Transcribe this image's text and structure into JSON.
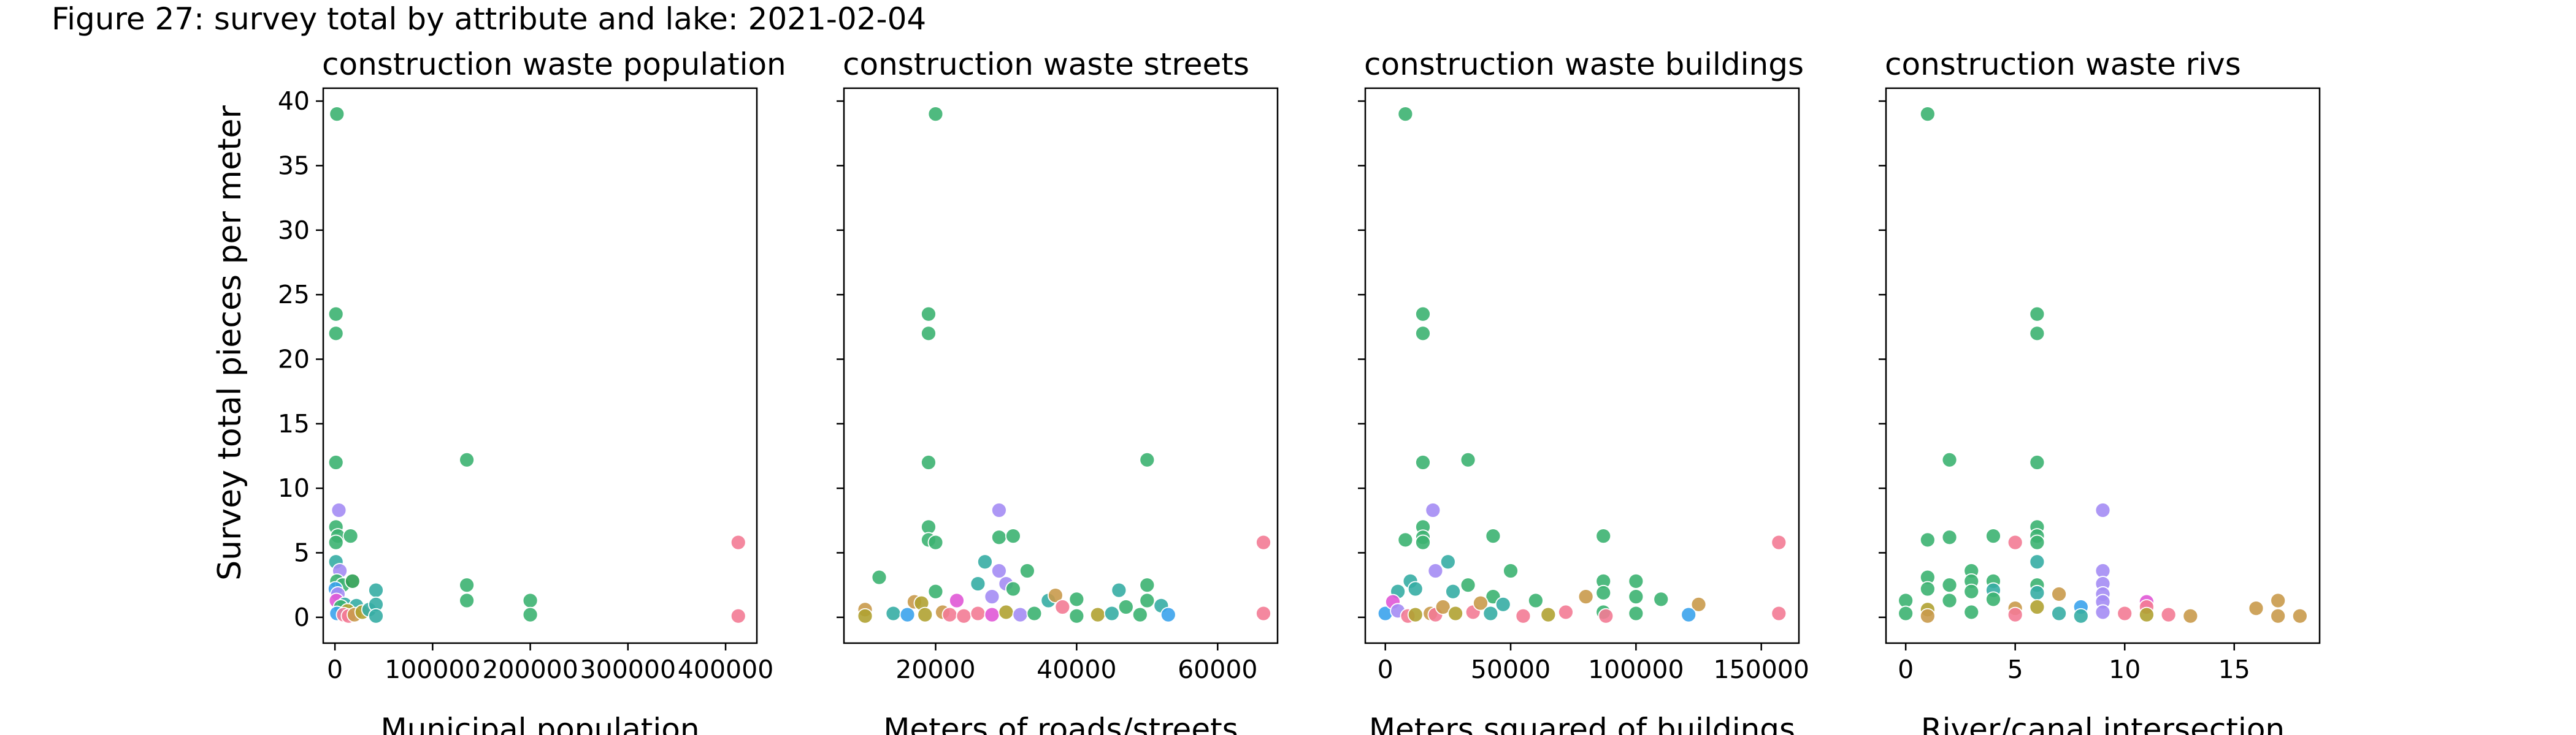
{
  "figure_title": "Figure 27: survey total by attribute and lake: 2021-02-04",
  "y_axis_label": "Survey total pieces per meter",
  "palette": {
    "green": "#3cb371",
    "dark_green": "#2e9e52",
    "teal": "#36ada4",
    "blue": "#3ba3ec",
    "purple": "#a48cf4",
    "magenta": "#e058d6",
    "pink": "#f37b95",
    "olive": "#b0a232",
    "tan": "#c99a4b"
  },
  "chart_data": [
    {
      "type": "scatter",
      "title": "construction waste population",
      "xlabel": "Municipal population",
      "xlim": [
        -12000,
        432000
      ],
      "ylim": [
        -2,
        41
      ],
      "xticks": [
        0,
        100000,
        200000,
        300000,
        400000
      ],
      "xtick_labels": [
        "0",
        "100000",
        "200000",
        "300000",
        "400000"
      ],
      "yticks": [
        0,
        5,
        10,
        15,
        20,
        25,
        30,
        35,
        40
      ],
      "ytick_labels": [
        "0",
        "5",
        "10",
        "15",
        "20",
        "25",
        "30",
        "35",
        "40"
      ],
      "grid": false,
      "points": [
        {
          "x": 2000,
          "y": 39,
          "c": "green"
        },
        {
          "x": 1000,
          "y": 23.5,
          "c": "green"
        },
        {
          "x": 1000,
          "y": 22,
          "c": "green"
        },
        {
          "x": 1000,
          "y": 12,
          "c": "green"
        },
        {
          "x": 4000,
          "y": 8.3,
          "c": "purple"
        },
        {
          "x": 1000,
          "y": 7,
          "c": "green"
        },
        {
          "x": 3000,
          "y": 6.3,
          "c": "green"
        },
        {
          "x": 1000,
          "y": 5.8,
          "c": "green"
        },
        {
          "x": 16000,
          "y": 6.3,
          "c": "green"
        },
        {
          "x": 1000,
          "y": 4.3,
          "c": "teal"
        },
        {
          "x": 5000,
          "y": 3.6,
          "c": "purple"
        },
        {
          "x": 2000,
          "y": 2.8,
          "c": "green"
        },
        {
          "x": 8000,
          "y": 2.5,
          "c": "green"
        },
        {
          "x": 18000,
          "y": 2.8,
          "c": "dark_green"
        },
        {
          "x": 500,
          "y": 2.2,
          "c": "blue"
        },
        {
          "x": 3000,
          "y": 1.8,
          "c": "purple"
        },
        {
          "x": 1500,
          "y": 1.3,
          "c": "magenta"
        },
        {
          "x": 10000,
          "y": 1.0,
          "c": "teal"
        },
        {
          "x": 6000,
          "y": 0.8,
          "c": "green"
        },
        {
          "x": 22000,
          "y": 0.9,
          "c": "teal"
        },
        {
          "x": 13000,
          "y": 0.5,
          "c": "olive"
        },
        {
          "x": 2000,
          "y": 0.3,
          "c": "blue"
        },
        {
          "x": 9000,
          "y": 0.2,
          "c": "pink"
        },
        {
          "x": 14000,
          "y": 0.1,
          "c": "pink"
        },
        {
          "x": 20000,
          "y": 0.2,
          "c": "tan"
        },
        {
          "x": 28000,
          "y": 0.4,
          "c": "olive"
        },
        {
          "x": 35000,
          "y": 0.6,
          "c": "teal"
        },
        {
          "x": 42000,
          "y": 2.1,
          "c": "teal"
        },
        {
          "x": 42000,
          "y": 1.0,
          "c": "teal"
        },
        {
          "x": 42000,
          "y": 0.1,
          "c": "teal"
        },
        {
          "x": 135000,
          "y": 12.2,
          "c": "green"
        },
        {
          "x": 135000,
          "y": 2.5,
          "c": "green"
        },
        {
          "x": 135000,
          "y": 1.3,
          "c": "green"
        },
        {
          "x": 200000,
          "y": 1.3,
          "c": "green"
        },
        {
          "x": 200000,
          "y": 0.2,
          "c": "green"
        },
        {
          "x": 413000,
          "y": 5.8,
          "c": "pink"
        },
        {
          "x": 413000,
          "y": 0.1,
          "c": "pink"
        }
      ]
    },
    {
      "type": "scatter",
      "title": "construction waste streets",
      "xlabel": "Meters of roads/streets",
      "xlim": [
        7000,
        68500
      ],
      "ylim": [
        -2,
        41
      ],
      "xticks": [
        20000,
        40000,
        60000
      ],
      "xtick_labels": [
        "20000",
        "40000",
        "60000"
      ],
      "yticks": [
        0,
        5,
        10,
        15,
        20,
        25,
        30,
        35,
        40
      ],
      "ytick_labels": [],
      "grid": false,
      "points": [
        {
          "x": 20000,
          "y": 39,
          "c": "green"
        },
        {
          "x": 19000,
          "y": 23.5,
          "c": "green"
        },
        {
          "x": 19000,
          "y": 22,
          "c": "green"
        },
        {
          "x": 19000,
          "y": 12,
          "c": "green"
        },
        {
          "x": 50000,
          "y": 12.2,
          "c": "green"
        },
        {
          "x": 29000,
          "y": 8.3,
          "c": "purple"
        },
        {
          "x": 19000,
          "y": 7,
          "c": "green"
        },
        {
          "x": 19000,
          "y": 6.0,
          "c": "green"
        },
        {
          "x": 20000,
          "y": 5.8,
          "c": "green"
        },
        {
          "x": 29000,
          "y": 6.2,
          "c": "green"
        },
        {
          "x": 31000,
          "y": 6.3,
          "c": "green"
        },
        {
          "x": 66500,
          "y": 5.8,
          "c": "pink"
        },
        {
          "x": 27000,
          "y": 4.3,
          "c": "teal"
        },
        {
          "x": 29000,
          "y": 3.6,
          "c": "purple"
        },
        {
          "x": 33000,
          "y": 3.6,
          "c": "green"
        },
        {
          "x": 12000,
          "y": 3.1,
          "c": "green"
        },
        {
          "x": 26000,
          "y": 2.6,
          "c": "teal"
        },
        {
          "x": 30000,
          "y": 2.6,
          "c": "purple"
        },
        {
          "x": 31000,
          "y": 2.2,
          "c": "green"
        },
        {
          "x": 20000,
          "y": 2.0,
          "c": "green"
        },
        {
          "x": 28000,
          "y": 1.6,
          "c": "purple"
        },
        {
          "x": 46000,
          "y": 2.1,
          "c": "teal"
        },
        {
          "x": 50000,
          "y": 2.5,
          "c": "green"
        },
        {
          "x": 50000,
          "y": 1.3,
          "c": "green"
        },
        {
          "x": 36000,
          "y": 1.3,
          "c": "teal"
        },
        {
          "x": 40000,
          "y": 1.4,
          "c": "green"
        },
        {
          "x": 10000,
          "y": 0.6,
          "c": "tan"
        },
        {
          "x": 10000,
          "y": 0.1,
          "c": "olive"
        },
        {
          "x": 14000,
          "y": 0.3,
          "c": "teal"
        },
        {
          "x": 16000,
          "y": 0.2,
          "c": "blue"
        },
        {
          "x": 17000,
          "y": 1.2,
          "c": "tan"
        },
        {
          "x": 18000,
          "y": 1.1,
          "c": "olive"
        },
        {
          "x": 18500,
          "y": 0.2,
          "c": "olive"
        },
        {
          "x": 21000,
          "y": 0.4,
          "c": "tan"
        },
        {
          "x": 22000,
          "y": 0.2,
          "c": "pink"
        },
        {
          "x": 23000,
          "y": 1.3,
          "c": "magenta"
        },
        {
          "x": 24000,
          "y": 0.1,
          "c": "pink"
        },
        {
          "x": 26000,
          "y": 0.3,
          "c": "pink"
        },
        {
          "x": 28000,
          "y": 0.2,
          "c": "magenta"
        },
        {
          "x": 30000,
          "y": 0.4,
          "c": "olive"
        },
        {
          "x": 32000,
          "y": 0.2,
          "c": "purple"
        },
        {
          "x": 34000,
          "y": 0.3,
          "c": "green"
        },
        {
          "x": 37000,
          "y": 1.7,
          "c": "tan"
        },
        {
          "x": 38000,
          "y": 0.8,
          "c": "pink"
        },
        {
          "x": 40000,
          "y": 0.1,
          "c": "green"
        },
        {
          "x": 43000,
          "y": 0.2,
          "c": "olive"
        },
        {
          "x": 45000,
          "y": 0.3,
          "c": "teal"
        },
        {
          "x": 47000,
          "y": 0.8,
          "c": "green"
        },
        {
          "x": 49000,
          "y": 0.2,
          "c": "green"
        },
        {
          "x": 52000,
          "y": 0.9,
          "c": "teal"
        },
        {
          "x": 53000,
          "y": 0.2,
          "c": "blue"
        },
        {
          "x": 66500,
          "y": 0.3,
          "c": "pink"
        }
      ]
    },
    {
      "type": "scatter",
      "title": "construction waste buildings",
      "xlabel": "Meters squared of buildings",
      "xlim": [
        -8000,
        165000
      ],
      "ylim": [
        -2,
        41
      ],
      "xticks": [
        0,
        50000,
        100000,
        150000
      ],
      "xtick_labels": [
        "0",
        "50000",
        "100000",
        "150000"
      ],
      "yticks": [
        0,
        5,
        10,
        15,
        20,
        25,
        30,
        35,
        40
      ],
      "ytick_labels": [],
      "grid": false,
      "points": [
        {
          "x": 8000,
          "y": 39,
          "c": "green"
        },
        {
          "x": 15000,
          "y": 23.5,
          "c": "green"
        },
        {
          "x": 15000,
          "y": 22,
          "c": "green"
        },
        {
          "x": 15000,
          "y": 12,
          "c": "green"
        },
        {
          "x": 33000,
          "y": 12.2,
          "c": "green"
        },
        {
          "x": 19000,
          "y": 8.3,
          "c": "purple"
        },
        {
          "x": 15000,
          "y": 7,
          "c": "green"
        },
        {
          "x": 15000,
          "y": 6.2,
          "c": "green"
        },
        {
          "x": 15000,
          "y": 5.8,
          "c": "green"
        },
        {
          "x": 8000,
          "y": 6.0,
          "c": "green"
        },
        {
          "x": 43000,
          "y": 6.3,
          "c": "green"
        },
        {
          "x": 87000,
          "y": 6.3,
          "c": "green"
        },
        {
          "x": 157000,
          "y": 5.8,
          "c": "pink"
        },
        {
          "x": 25000,
          "y": 4.3,
          "c": "teal"
        },
        {
          "x": 20000,
          "y": 3.6,
          "c": "purple"
        },
        {
          "x": 50000,
          "y": 3.6,
          "c": "green"
        },
        {
          "x": 10000,
          "y": 2.8,
          "c": "teal"
        },
        {
          "x": 87000,
          "y": 2.8,
          "c": "green"
        },
        {
          "x": 100000,
          "y": 2.8,
          "c": "green"
        },
        {
          "x": 33000,
          "y": 2.5,
          "c": "green"
        },
        {
          "x": 5000,
          "y": 2.0,
          "c": "teal"
        },
        {
          "x": 12000,
          "y": 2.2,
          "c": "teal"
        },
        {
          "x": 27000,
          "y": 2.0,
          "c": "teal"
        },
        {
          "x": 80000,
          "y": 1.6,
          "c": "tan"
        },
        {
          "x": 87000,
          "y": 1.9,
          "c": "green"
        },
        {
          "x": 100000,
          "y": 1.6,
          "c": "green"
        },
        {
          "x": 110000,
          "y": 1.4,
          "c": "green"
        },
        {
          "x": 125000,
          "y": 1.0,
          "c": "tan"
        },
        {
          "x": 43000,
          "y": 1.6,
          "c": "green"
        },
        {
          "x": 47000,
          "y": 1.0,
          "c": "teal"
        },
        {
          "x": 60000,
          "y": 1.3,
          "c": "green"
        },
        {
          "x": 65000,
          "y": 0.2,
          "c": "olive"
        },
        {
          "x": 72000,
          "y": 0.4,
          "c": "pink"
        },
        {
          "x": 0,
          "y": 0.3,
          "c": "blue"
        },
        {
          "x": 3000,
          "y": 1.2,
          "c": "magenta"
        },
        {
          "x": 5000,
          "y": 0.5,
          "c": "purple"
        },
        {
          "x": 9000,
          "y": 0.1,
          "c": "pink"
        },
        {
          "x": 12000,
          "y": 0.2,
          "c": "olive"
        },
        {
          "x": 18000,
          "y": 0.3,
          "c": "tan"
        },
        {
          "x": 20000,
          "y": 0.2,
          "c": "pink"
        },
        {
          "x": 23000,
          "y": 0.8,
          "c": "tan"
        },
        {
          "x": 28000,
          "y": 0.3,
          "c": "olive"
        },
        {
          "x": 35000,
          "y": 0.4,
          "c": "pink"
        },
        {
          "x": 38000,
          "y": 1.1,
          "c": "tan"
        },
        {
          "x": 42000,
          "y": 0.3,
          "c": "teal"
        },
        {
          "x": 55000,
          "y": 0.1,
          "c": "pink"
        },
        {
          "x": 87000,
          "y": 0.4,
          "c": "green"
        },
        {
          "x": 88000,
          "y": 0.1,
          "c": "pink"
        },
        {
          "x": 100000,
          "y": 0.3,
          "c": "green"
        },
        {
          "x": 121000,
          "y": 0.2,
          "c": "blue"
        },
        {
          "x": 157000,
          "y": 0.3,
          "c": "pink"
        }
      ]
    },
    {
      "type": "scatter",
      "title": "construction waste rivs",
      "xlabel": "River/canal intersection",
      "xlim": [
        -0.9,
        18.9
      ],
      "ylim": [
        -2,
        41
      ],
      "xticks": [
        0,
        5,
        10,
        15
      ],
      "xtick_labels": [
        "0",
        "5",
        "10",
        "15"
      ],
      "yticks": [
        0,
        5,
        10,
        15,
        20,
        25,
        30,
        35,
        40
      ],
      "ytick_labels": [],
      "grid": false,
      "points": [
        {
          "x": 1,
          "y": 39,
          "c": "green"
        },
        {
          "x": 6,
          "y": 23.5,
          "c": "green"
        },
        {
          "x": 6,
          "y": 22,
          "c": "green"
        },
        {
          "x": 6,
          "y": 12,
          "c": "green"
        },
        {
          "x": 2,
          "y": 12.2,
          "c": "green"
        },
        {
          "x": 9,
          "y": 8.3,
          "c": "purple"
        },
        {
          "x": 6,
          "y": 7,
          "c": "green"
        },
        {
          "x": 6,
          "y": 6.3,
          "c": "green"
        },
        {
          "x": 1,
          "y": 6.0,
          "c": "green"
        },
        {
          "x": 2,
          "y": 6.2,
          "c": "green"
        },
        {
          "x": 4,
          "y": 6.3,
          "c": "green"
        },
        {
          "x": 5,
          "y": 5.8,
          "c": "pink"
        },
        {
          "x": 6,
          "y": 5.8,
          "c": "green"
        },
        {
          "x": 6,
          "y": 4.3,
          "c": "teal"
        },
        {
          "x": 9,
          "y": 3.6,
          "c": "purple"
        },
        {
          "x": 3,
          "y": 3.6,
          "c": "green"
        },
        {
          "x": 1,
          "y": 3.1,
          "c": "green"
        },
        {
          "x": 3,
          "y": 2.8,
          "c": "green"
        },
        {
          "x": 4,
          "y": 2.8,
          "c": "green"
        },
        {
          "x": 2,
          "y": 2.5,
          "c": "green"
        },
        {
          "x": 6,
          "y": 2.5,
          "c": "green"
        },
        {
          "x": 1,
          "y": 2.2,
          "c": "green"
        },
        {
          "x": 9,
          "y": 2.6,
          "c": "purple"
        },
        {
          "x": 3,
          "y": 2.0,
          "c": "green"
        },
        {
          "x": 4,
          "y": 2.1,
          "c": "teal"
        },
        {
          "x": 6,
          "y": 1.9,
          "c": "teal"
        },
        {
          "x": 7,
          "y": 1.8,
          "c": "tan"
        },
        {
          "x": 9,
          "y": 1.8,
          "c": "purple"
        },
        {
          "x": 0,
          "y": 1.3,
          "c": "green"
        },
        {
          "x": 2,
          "y": 1.3,
          "c": "green"
        },
        {
          "x": 4,
          "y": 1.4,
          "c": "green"
        },
        {
          "x": 9,
          "y": 1.2,
          "c": "purple"
        },
        {
          "x": 11,
          "y": 1.2,
          "c": "magenta"
        },
        {
          "x": 17,
          "y": 1.3,
          "c": "tan"
        },
        {
          "x": 0,
          "y": 0.3,
          "c": "green"
        },
        {
          "x": 1,
          "y": 0.6,
          "c": "olive"
        },
        {
          "x": 1,
          "y": 0.1,
          "c": "tan"
        },
        {
          "x": 3,
          "y": 0.4,
          "c": "green"
        },
        {
          "x": 5,
          "y": 0.7,
          "c": "tan"
        },
        {
          "x": 5,
          "y": 0.2,
          "c": "pink"
        },
        {
          "x": 6,
          "y": 0.8,
          "c": "olive"
        },
        {
          "x": 7,
          "y": 0.3,
          "c": "teal"
        },
        {
          "x": 8,
          "y": 0.8,
          "c": "blue"
        },
        {
          "x": 8,
          "y": 0.1,
          "c": "teal"
        },
        {
          "x": 9,
          "y": 0.4,
          "c": "purple"
        },
        {
          "x": 10,
          "y": 0.3,
          "c": "pink"
        },
        {
          "x": 11,
          "y": 0.8,
          "c": "pink"
        },
        {
          "x": 11,
          "y": 0.2,
          "c": "olive"
        },
        {
          "x": 12,
          "y": 0.2,
          "c": "pink"
        },
        {
          "x": 13,
          "y": 0.1,
          "c": "tan"
        },
        {
          "x": 16,
          "y": 0.7,
          "c": "tan"
        },
        {
          "x": 17,
          "y": 0.1,
          "c": "tan"
        },
        {
          "x": 18,
          "y": 0.1,
          "c": "tan"
        }
      ]
    }
  ]
}
